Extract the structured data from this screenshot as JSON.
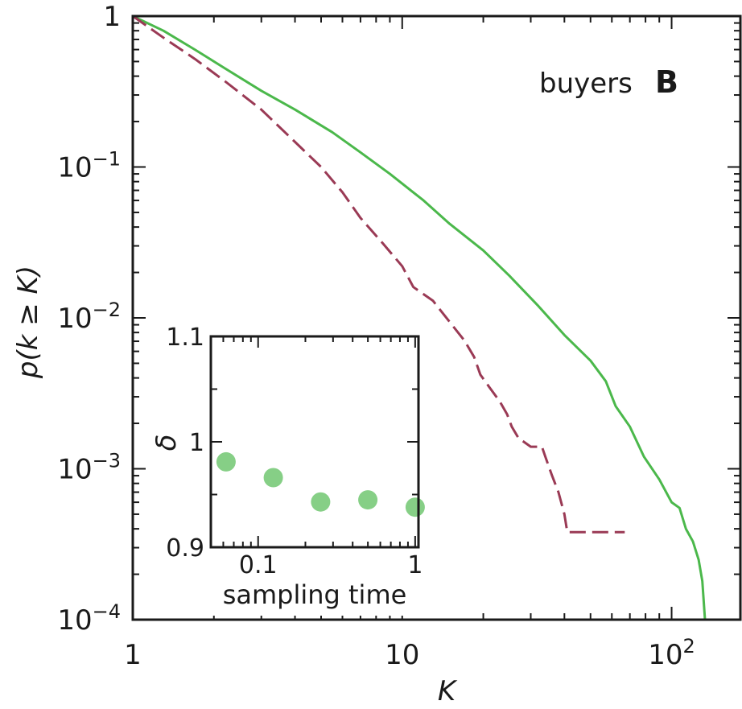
{
  "panel_label": "B",
  "legend_text": "buyers",
  "chart_data": [
    {
      "type": "line",
      "xlabel": "K",
      "ylabel": "p(k ≥ K)",
      "xscale": "log",
      "yscale": "log",
      "xlim": [
        1,
        180
      ],
      "ylim": [
        0.0001,
        1
      ],
      "x_ticks": [
        {
          "value": 1,
          "base": "1",
          "exp": ""
        },
        {
          "value": 10,
          "base": "10",
          "exp": ""
        },
        {
          "value": 100,
          "base": "10",
          "exp": "2"
        }
      ],
      "y_ticks": [
        {
          "value": 1,
          "base": "1",
          "exp": ""
        },
        {
          "value": 0.1,
          "base": "10",
          "exp": "−1"
        },
        {
          "value": 0.01,
          "base": "10",
          "exp": "−2"
        },
        {
          "value": 0.001,
          "base": "10",
          "exp": "−3"
        },
        {
          "value": 0.0001,
          "base": "10",
          "exp": "−4"
        }
      ],
      "series": [
        {
          "color": "#4bb84b",
          "dash": "solid",
          "points": [
            [
              1,
              1
            ],
            [
              1.3,
              0.8
            ],
            [
              1.7,
              0.6
            ],
            [
              2.2,
              0.45
            ],
            [
              3,
              0.32
            ],
            [
              4,
              0.24
            ],
            [
              5.5,
              0.17
            ],
            [
              7,
              0.125
            ],
            [
              9,
              0.09
            ],
            [
              12,
              0.06
            ],
            [
              15,
              0.042
            ],
            [
              20,
              0.028
            ],
            [
              25,
              0.019
            ],
            [
              32,
              0.012
            ],
            [
              40,
              0.0077
            ],
            [
              50,
              0.0052
            ],
            [
              57,
              0.0038
            ],
            [
              62,
              0.0026
            ],
            [
              70,
              0.0019
            ],
            [
              79,
              0.0012
            ],
            [
              90,
              0.00085
            ],
            [
              100,
              0.0006
            ],
            [
              107,
              0.00055
            ],
            [
              113,
              0.0004
            ],
            [
              120,
              0.00033
            ],
            [
              126,
              0.00025
            ],
            [
              130,
              0.00018
            ],
            [
              133,
              0.0001
            ]
          ]
        },
        {
          "color": "#9a3a55",
          "dash": "dashed",
          "points": [
            [
              1,
              1
            ],
            [
              1.3,
              0.72
            ],
            [
              1.7,
              0.52
            ],
            [
              2.2,
              0.37
            ],
            [
              3,
              0.24
            ],
            [
              3.8,
              0.16
            ],
            [
              5,
              0.1
            ],
            [
              6,
              0.068
            ],
            [
              7,
              0.046
            ],
            [
              8.5,
              0.031
            ],
            [
              10,
              0.022
            ],
            [
              11,
              0.016
            ],
            [
              13,
              0.013
            ],
            [
              15,
              0.0094
            ],
            [
              17,
              0.0071
            ],
            [
              18.5,
              0.0055
            ],
            [
              19.5,
              0.0042
            ],
            [
              21,
              0.0035
            ],
            [
              23,
              0.0028
            ],
            [
              24.5,
              0.0023
            ],
            [
              25.5,
              0.0019
            ],
            [
              27,
              0.0016
            ],
            [
              30,
              0.0014
            ],
            [
              33,
              0.0014
            ],
            [
              34,
              0.0012
            ],
            [
              36,
              0.0009
            ],
            [
              38,
              0.0007
            ],
            [
              40,
              0.0005
            ],
            [
              41,
              0.00038
            ],
            [
              45,
              0.00038
            ],
            [
              55,
              0.00038
            ],
            [
              67,
              0.00038
            ]
          ]
        }
      ]
    },
    {
      "type": "scatter",
      "xlabel": "sampling time",
      "ylabel": "δ",
      "xscale": "log",
      "xlim": [
        0.05,
        1.05
      ],
      "ylim": [
        0.9,
        1.1
      ],
      "x_ticks": [
        {
          "value": 0.1,
          "label": "0.1"
        },
        {
          "value": 1,
          "label": "1"
        }
      ],
      "y_ticks": [
        {
          "value": 0.9,
          "label": "0.9"
        },
        {
          "value": 1,
          "label": "1"
        },
        {
          "value": 1.1,
          "label": "1.1"
        }
      ],
      "color": "#86cf86",
      "points": [
        [
          0.0625,
          0.981
        ],
        [
          0.125,
          0.966
        ],
        [
          0.25,
          0.943
        ],
        [
          0.5,
          0.945
        ],
        [
          1.0,
          0.938
        ]
      ]
    }
  ]
}
